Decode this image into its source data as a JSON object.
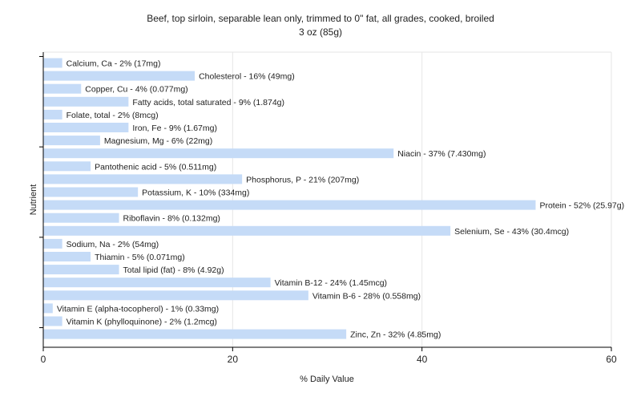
{
  "chart_data": {
    "type": "bar",
    "orientation": "horizontal",
    "title": "Beef, top sirloin, separable lean only, trimmed to 0\" fat, all grades, cooked, broiled",
    "subtitle": "3 oz (85g)",
    "xlabel": "% Daily Value",
    "ylabel": "Nutrient",
    "xlim": [
      0,
      60
    ],
    "xticks": [
      "0",
      "20",
      "40",
      "60"
    ],
    "grid": true,
    "bar_color": "#c5dbf7",
    "categories": [
      "Calcium, Ca",
      "Cholesterol",
      "Copper, Cu",
      "Fatty acids, total saturated",
      "Folate, total",
      "Iron, Fe",
      "Magnesium, Mg",
      "Niacin",
      "Pantothenic acid",
      "Phosphorus, P",
      "Potassium, K",
      "Protein",
      "Riboflavin",
      "Selenium, Se",
      "Sodium, Na",
      "Thiamin",
      "Total lipid (fat)",
      "Vitamin B-12",
      "Vitamin B-6",
      "Vitamin E (alpha-tocopherol)",
      "Vitamin K (phylloquinone)",
      "Zinc, Zn"
    ],
    "values": [
      2,
      16,
      4,
      9,
      2,
      9,
      6,
      37,
      5,
      21,
      10,
      52,
      8,
      43,
      2,
      5,
      8,
      24,
      28,
      1,
      2,
      32
    ],
    "labels": [
      "Calcium, Ca - 2% (17mg)",
      "Cholesterol - 16% (49mg)",
      "Copper, Cu - 4% (0.077mg)",
      "Fatty acids, total saturated - 9% (1.874g)",
      "Folate, total - 2% (8mcg)",
      "Iron, Fe - 9% (1.67mg)",
      "Magnesium, Mg - 6% (22mg)",
      "Niacin - 37% (7.430mg)",
      "Pantothenic acid - 5% (0.511mg)",
      "Phosphorus, P - 21% (207mg)",
      "Potassium, K - 10% (334mg)",
      "Protein - 52% (25.97g)",
      "Riboflavin - 8% (0.132mg)",
      "Selenium, Se - 43% (30.4mcg)",
      "Sodium, Na - 2% (54mg)",
      "Thiamin - 5% (0.071mg)",
      "Total lipid (fat) - 8% (4.92g)",
      "Vitamin B-12 - 24% (1.45mcg)",
      "Vitamin B-6 - 28% (0.558mg)",
      "Vitamin E (alpha-tocopherol) - 1% (0.33mg)",
      "Vitamin K (phylloquinone) - 2% (1.2mcg)",
      "Zinc, Zn - 32% (4.85mg)"
    ]
  }
}
